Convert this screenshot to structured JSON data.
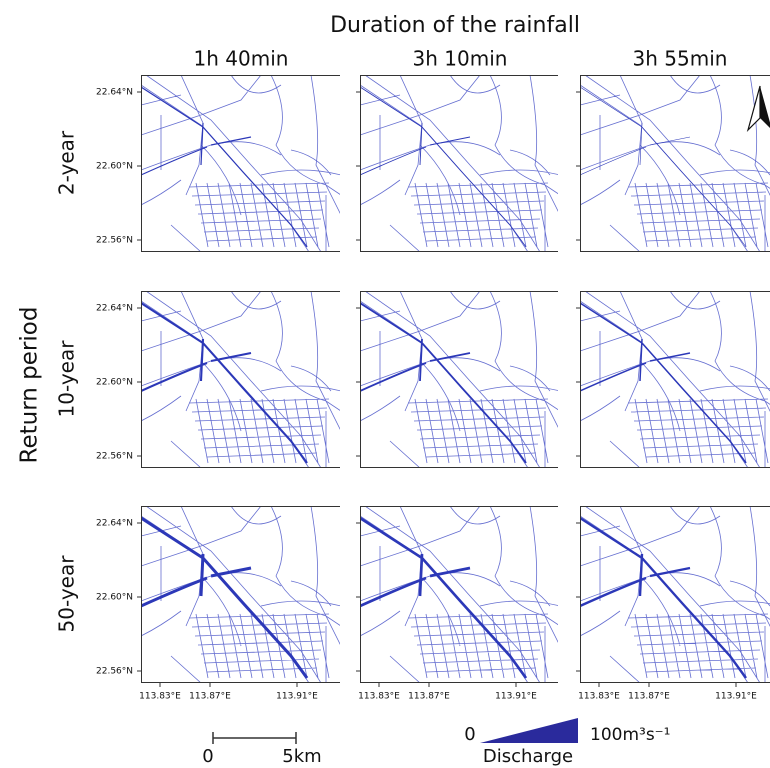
{
  "title": "Duration of the rainfall",
  "columns": [
    "1h 40min",
    "3h 10min",
    "3h 55min"
  ],
  "row_axis_title": "Return period",
  "rows": [
    "2-year",
    "10-year",
    "50-year"
  ],
  "latitude_ticks": [
    "22.64°N",
    "22.60°N",
    "22.56°N"
  ],
  "longitude_ticks": [
    "113.83°E",
    "113.87°E",
    "113.91°E"
  ],
  "scale_bar": {
    "start": "0",
    "end": "5km"
  },
  "legend": {
    "min": "0",
    "max": "100m³s⁻¹",
    "title": "Discharge"
  }
}
